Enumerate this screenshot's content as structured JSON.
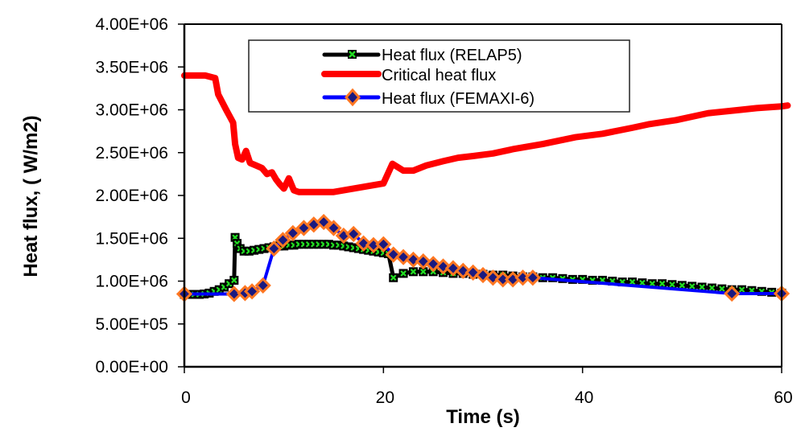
{
  "chart_data": {
    "type": "line",
    "title": "",
    "xlabel": "Time (s)",
    "ylabel": "Heat flux, ( W/m2)",
    "xlim": [
      0,
      60
    ],
    "ylim": [
      0,
      4000000
    ],
    "x_ticks": [
      0,
      20,
      40,
      60
    ],
    "x_tick_labels": [
      "0",
      "20",
      "40",
      "60"
    ],
    "y_ticks": [
      0,
      500000,
      1000000,
      1500000,
      2000000,
      2500000,
      3000000,
      3500000,
      4000000
    ],
    "y_tick_labels": [
      "0.00E+00",
      "5.00E+05",
      "1.00E+06",
      "1.50E+06",
      "2.00E+06",
      "2.50E+06",
      "3.00E+06",
      "3.50E+06",
      "4.00E+06"
    ],
    "grid": false,
    "legend_position": "top-center",
    "series": [
      {
        "name": "Heat flux (RELAP5)",
        "legend_label": "Heat flux (RELAP5)",
        "color": "#000000",
        "marker": "x-square",
        "marker_color": "#22dd22",
        "points": [
          [
            0,
            845000
          ],
          [
            0.5,
            845000
          ],
          [
            1,
            845000
          ],
          [
            1.5,
            845000
          ],
          [
            2,
            850000
          ],
          [
            2.5,
            860000
          ],
          [
            3,
            880000
          ],
          [
            3.5,
            900000
          ],
          [
            4,
            930000
          ],
          [
            4.5,
            970000
          ],
          [
            5,
            1010000
          ],
          [
            5.1,
            1510000
          ],
          [
            5.3,
            1440000
          ],
          [
            5.6,
            1380000
          ],
          [
            6,
            1350000
          ],
          [
            6.5,
            1350000
          ],
          [
            7,
            1360000
          ],
          [
            7.5,
            1370000
          ],
          [
            8,
            1380000
          ],
          [
            8.5,
            1390000
          ],
          [
            9,
            1400000
          ],
          [
            9.5,
            1410000
          ],
          [
            10,
            1410000
          ],
          [
            10.5,
            1420000
          ],
          [
            11,
            1420000
          ],
          [
            11.5,
            1430000
          ],
          [
            12,
            1430000
          ],
          [
            12.5,
            1430000
          ],
          [
            13,
            1430000
          ],
          [
            13.5,
            1430000
          ],
          [
            14,
            1430000
          ],
          [
            14.5,
            1430000
          ],
          [
            15,
            1420000
          ],
          [
            15.5,
            1420000
          ],
          [
            16,
            1410000
          ],
          [
            16.5,
            1400000
          ],
          [
            17,
            1390000
          ],
          [
            17.5,
            1380000
          ],
          [
            18,
            1370000
          ],
          [
            18.5,
            1360000
          ],
          [
            19,
            1350000
          ],
          [
            19.5,
            1340000
          ],
          [
            20,
            1330000
          ],
          [
            20.5,
            1320000
          ],
          [
            21,
            1040000
          ],
          [
            22,
            1090000
          ],
          [
            23,
            1110000
          ],
          [
            24,
            1110000
          ],
          [
            25,
            1110000
          ],
          [
            26,
            1100000
          ],
          [
            27,
            1090000
          ],
          [
            28,
            1090000
          ],
          [
            29,
            1080000
          ],
          [
            30,
            1080000
          ],
          [
            31,
            1070000
          ],
          [
            32,
            1070000
          ],
          [
            33,
            1060000
          ],
          [
            34,
            1050000
          ],
          [
            35,
            1050000
          ],
          [
            36,
            1040000
          ],
          [
            37,
            1040000
          ],
          [
            38,
            1030000
          ],
          [
            39,
            1020000
          ],
          [
            40,
            1020000
          ],
          [
            41,
            1010000
          ],
          [
            42,
            1010000
          ],
          [
            43,
            1000000
          ],
          [
            44,
            990000
          ],
          [
            45,
            990000
          ],
          [
            46,
            980000
          ],
          [
            47,
            970000
          ],
          [
            48,
            970000
          ],
          [
            49,
            960000
          ],
          [
            50,
            950000
          ],
          [
            51,
            940000
          ],
          [
            52,
            930000
          ],
          [
            53,
            920000
          ],
          [
            54,
            910000
          ],
          [
            55,
            900000
          ],
          [
            56,
            900000
          ],
          [
            57,
            890000
          ],
          [
            58,
            880000
          ],
          [
            59,
            870000
          ],
          [
            60,
            860000
          ]
        ]
      },
      {
        "name": "Critical heat flux",
        "legend_label": "Critical heat flux",
        "color": "#ff0000",
        "marker": "none",
        "points": [
          [
            0,
            3400000
          ],
          [
            2.1,
            3400000
          ],
          [
            3.1,
            3370000
          ],
          [
            3.4,
            3180000
          ],
          [
            4.2,
            3000000
          ],
          [
            4.9,
            2850000
          ],
          [
            5.1,
            2600000
          ],
          [
            5.4,
            2440000
          ],
          [
            5.8,
            2420000
          ],
          [
            6.2,
            2520000
          ],
          [
            6.6,
            2380000
          ],
          [
            7.2,
            2350000
          ],
          [
            7.8,
            2320000
          ],
          [
            8.3,
            2250000
          ],
          [
            8.8,
            2270000
          ],
          [
            9.2,
            2190000
          ],
          [
            9.6,
            2130000
          ],
          [
            10,
            2080000
          ],
          [
            10.5,
            2200000
          ],
          [
            11,
            2060000
          ],
          [
            11.5,
            2040000
          ],
          [
            13,
            2040000
          ],
          [
            15,
            2040000
          ],
          [
            16,
            2060000
          ],
          [
            17,
            2080000
          ],
          [
            18,
            2100000
          ],
          [
            19,
            2120000
          ],
          [
            20,
            2140000
          ],
          [
            20.9,
            2370000
          ],
          [
            22,
            2290000
          ],
          [
            23,
            2290000
          ],
          [
            24.3,
            2350000
          ],
          [
            26,
            2400000
          ],
          [
            27.5,
            2440000
          ],
          [
            29,
            2460000
          ],
          [
            31,
            2490000
          ],
          [
            33,
            2540000
          ],
          [
            36,
            2600000
          ],
          [
            39.3,
            2680000
          ],
          [
            42,
            2720000
          ],
          [
            45,
            2790000
          ],
          [
            46.6,
            2830000
          ],
          [
            49.4,
            2880000
          ],
          [
            52.6,
            2960000
          ],
          [
            55.9,
            3000000
          ],
          [
            57.5,
            3020000
          ],
          [
            60,
            3040000
          ],
          [
            60.6,
            3050000
          ]
        ]
      },
      {
        "name": "Heat flux (FEMAXI-6)",
        "legend_label": "Heat flux (FEMAXI-6)",
        "color": "#0000ff",
        "marker": "diamond",
        "marker_fill": "#1a1a80",
        "marker_edge": "#ff7722",
        "points": [
          [
            0,
            850000
          ],
          [
            5,
            850000
          ],
          [
            6.1,
            860000
          ],
          [
            6.8,
            880000
          ],
          [
            7.9,
            950000
          ],
          [
            9,
            1380000
          ],
          [
            9.9,
            1480000
          ],
          [
            10.9,
            1560000
          ],
          [
            12,
            1620000
          ],
          [
            13,
            1660000
          ],
          [
            14,
            1690000
          ],
          [
            15,
            1620000
          ],
          [
            16,
            1530000
          ],
          [
            17,
            1550000
          ],
          [
            18,
            1440000
          ],
          [
            19,
            1420000
          ],
          [
            20,
            1430000
          ],
          [
            21,
            1310000
          ],
          [
            22,
            1280000
          ],
          [
            23,
            1250000
          ],
          [
            24,
            1230000
          ],
          [
            25,
            1200000
          ],
          [
            26,
            1170000
          ],
          [
            27,
            1150000
          ],
          [
            28,
            1120000
          ],
          [
            29,
            1100000
          ],
          [
            30,
            1070000
          ],
          [
            31,
            1040000
          ],
          [
            32,
            1020000
          ],
          [
            33,
            1020000
          ],
          [
            34,
            1040000
          ],
          [
            35,
            1040000
          ],
          [
            55,
            855000
          ],
          [
            60,
            855000
          ]
        ]
      }
    ]
  }
}
